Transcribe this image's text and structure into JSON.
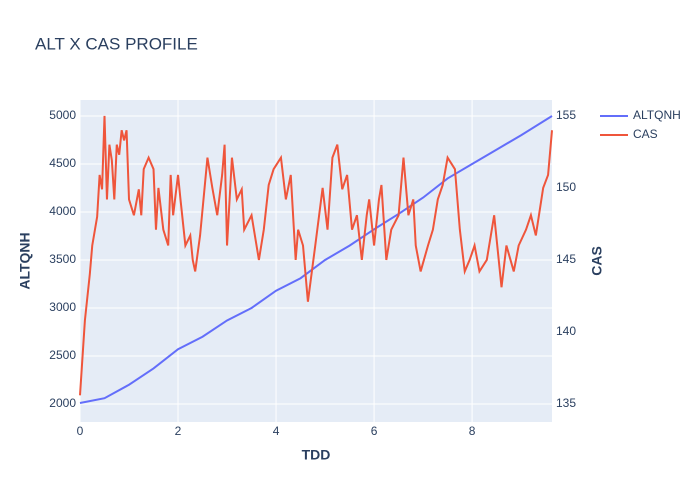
{
  "chart_data": {
    "type": "line",
    "title": "ALT X CAS PROFILE",
    "x_label": "TDD",
    "y_label": "ALTQNH",
    "y2_label": "CAS",
    "xlim": [
      0,
      9.63
    ],
    "xticks": [
      0,
      2,
      4,
      6,
      8
    ],
    "ylim": [
      1812,
      5167
    ],
    "yticks": [
      2000,
      2500,
      3000,
      3500,
      4000,
      4500,
      5000
    ],
    "y2lim": [
      133.75,
      156.1
    ],
    "y2ticks": [
      135,
      140,
      145,
      150,
      155
    ],
    "grid": true,
    "legend": "outside-right",
    "series": [
      {
        "name": "ALTQNH",
        "color": "#636efa",
        "x": [
          0,
          0.5,
          1,
          1.5,
          2,
          2.5,
          3,
          3.5,
          4,
          4.5,
          5,
          5.5,
          6,
          6.5,
          7,
          7.5,
          8,
          8.5,
          9,
          9.63
        ],
        "values": [
          2010,
          2060,
          2200,
          2370,
          2570,
          2700,
          2870,
          3000,
          3180,
          3310,
          3500,
          3650,
          3820,
          3980,
          4150,
          4350,
          4500,
          4650,
          4800,
          5000
        ]
      },
      {
        "name": "CAS",
        "color": "#EF553B",
        "axis": "y2",
        "x": [
          0,
          0.1,
          0.2,
          0.25,
          0.3,
          0.35,
          0.4,
          0.45,
          0.5,
          0.55,
          0.6,
          0.65,
          0.7,
          0.75,
          0.8,
          0.85,
          0.9,
          0.95,
          1.0,
          1.1,
          1.2,
          1.25,
          1.3,
          1.4,
          1.5,
          1.55,
          1.6,
          1.7,
          1.8,
          1.85,
          1.9,
          2.0,
          2.05,
          2.15,
          2.25,
          2.3,
          2.35,
          2.45,
          2.6,
          2.7,
          2.8,
          2.9,
          2.95,
          3.0,
          3.1,
          3.2,
          3.3,
          3.35,
          3.5,
          3.65,
          3.75,
          3.85,
          3.95,
          4.1,
          4.2,
          4.3,
          4.4,
          4.45,
          4.55,
          4.65,
          4.8,
          4.95,
          5.05,
          5.15,
          5.25,
          5.35,
          5.45,
          5.55,
          5.65,
          5.75,
          5.85,
          5.9,
          6.0,
          6.1,
          6.15,
          6.25,
          6.35,
          6.5,
          6.6,
          6.7,
          6.8,
          6.85,
          6.95,
          7.1,
          7.2,
          7.3,
          7.4,
          7.5,
          7.65,
          7.75,
          7.85,
          7.95,
          8.05,
          8.15,
          8.3,
          8.45,
          8.6,
          8.7,
          8.85,
          8.95,
          9.1,
          9.2,
          9.3,
          9.45,
          9.55,
          9.63
        ],
        "values": [
          135.6,
          140.8,
          144,
          146,
          147,
          148,
          150.9,
          149.9,
          155,
          149.2,
          153,
          151.9,
          149.2,
          153,
          152.3,
          154,
          153.3,
          154,
          149.2,
          148.1,
          149.9,
          148.1,
          151.3,
          152.1,
          151.3,
          147.1,
          150,
          147.1,
          146,
          150.9,
          148.1,
          150.9,
          149.2,
          146,
          146.7,
          145,
          144.2,
          146.7,
          152.1,
          150,
          148.1,
          150.9,
          153,
          146,
          152.1,
          149.2,
          149.9,
          147.1,
          148.1,
          145,
          147.1,
          150.2,
          151.3,
          152.1,
          149.2,
          150.9,
          145,
          147.1,
          146,
          142.1,
          146,
          150,
          147.1,
          152.1,
          153,
          149.9,
          150.9,
          147.1,
          148.1,
          145,
          148.1,
          149.2,
          146,
          149.2,
          150.2,
          145,
          147.1,
          148.1,
          152.1,
          148.1,
          149.2,
          146,
          144.2,
          146,
          147.1,
          149.2,
          150.2,
          152.1,
          151.3,
          147.1,
          144.2,
          145,
          146,
          144.2,
          145,
          148.1,
          143.1,
          146,
          144.2,
          146,
          147.1,
          148.1,
          146.7,
          150,
          150.9,
          154
        ]
      }
    ]
  }
}
